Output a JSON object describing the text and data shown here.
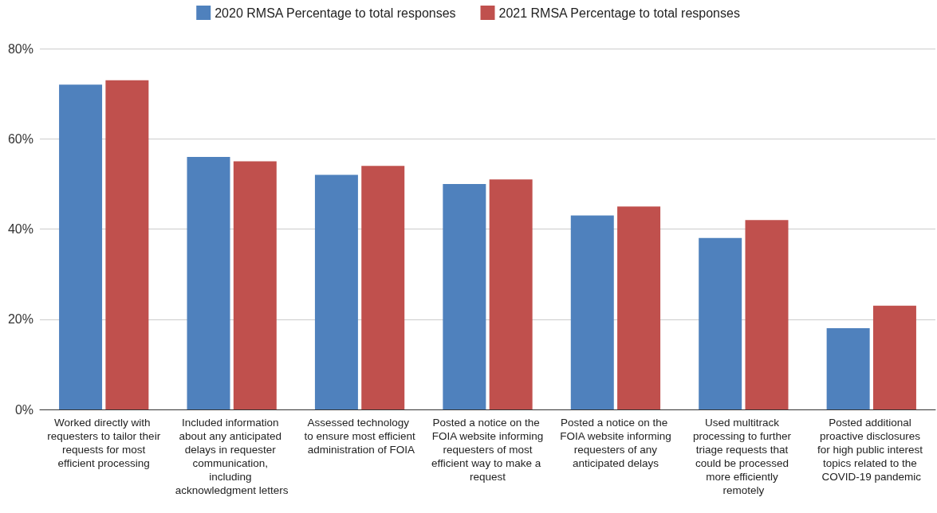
{
  "chart_data": {
    "type": "bar",
    "categories": [
      "Worked directly with requesters to tailor their requests for most efficient processing",
      "Included information about any anticipated delays in requester communication, including acknowledgment letters",
      "Assessed technology to ensure most efficient administration of FOIA",
      "Posted a notice on the FOIA website informing requesters of most efficient way to make a request",
      "Posted a notice on the FOIA website informing requesters of any anticipated delays",
      "Used multitrack processing to further triage requests that could be processed more efficiently remotely",
      "Posted additional proactive disclosures for high public interest topics related to the COVID-19 pandemic"
    ],
    "series": [
      {
        "name": "2020 RMSA Percentage to total responses",
        "color": "#4f81bd",
        "values": [
          72,
          56,
          52,
          50,
          43,
          38,
          18
        ]
      },
      {
        "name": "2021 RMSA Percentage to total responses",
        "color": "#c0504d",
        "values": [
          73,
          55,
          54,
          51,
          45,
          42,
          23
        ]
      }
    ],
    "ylim": [
      0,
      80
    ],
    "yticks": [
      {
        "value": 0,
        "label": "0%"
      },
      {
        "value": 20,
        "label": "20%"
      },
      {
        "value": 40,
        "label": "40%"
      },
      {
        "value": 60,
        "label": "60%"
      },
      {
        "value": 80,
        "label": "80%"
      }
    ],
    "grid": "y",
    "legend": "top"
  }
}
